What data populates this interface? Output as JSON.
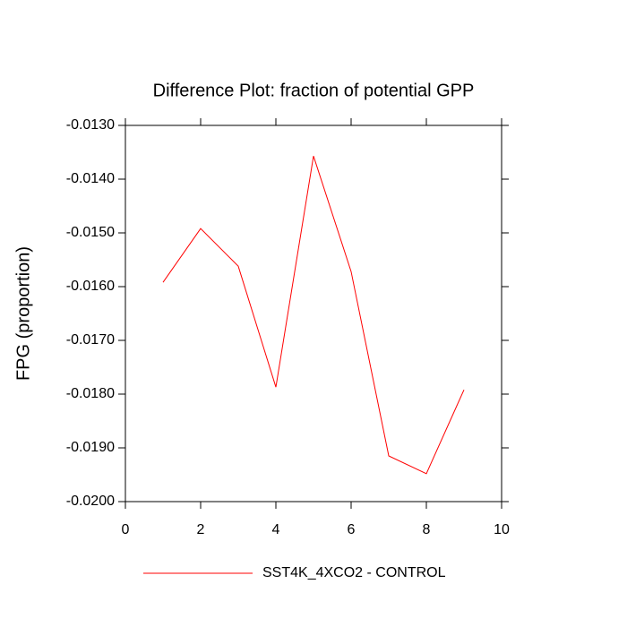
{
  "chart_data": {
    "type": "line",
    "title": "Difference Plot: fraction of potential GPP",
    "y_label": "FPG  (proportion)",
    "x": [
      1,
      2,
      3,
      4,
      5,
      6,
      7,
      8,
      9
    ],
    "series": [
      {
        "name": "SST4K_4XCO2 - CONTROL",
        "color": "#ff0000",
        "values": [
          -0.01592,
          -0.01492,
          -0.01562,
          -0.01787,
          -0.01357,
          -0.01572,
          -0.01915,
          -0.01948,
          -0.01792
        ]
      }
    ],
    "xlim": [
      0,
      10
    ],
    "xticks": [
      0,
      2,
      4,
      6,
      8,
      10
    ],
    "ylim": [
      -0.02,
      -0.013
    ],
    "yticks": [
      {
        "value": -0.02,
        "label": "-0.0200"
      },
      {
        "value": -0.019,
        "label": "-0.0190"
      },
      {
        "value": -0.018,
        "label": "-0.0180"
      },
      {
        "value": -0.017,
        "label": "-0.0170"
      },
      {
        "value": -0.016,
        "label": "-0.0160"
      },
      {
        "value": -0.015,
        "label": "-0.0150"
      },
      {
        "value": -0.014,
        "label": "-0.0140"
      },
      {
        "value": -0.013,
        "label": "-0.0130"
      }
    ],
    "legend": "bottom"
  }
}
